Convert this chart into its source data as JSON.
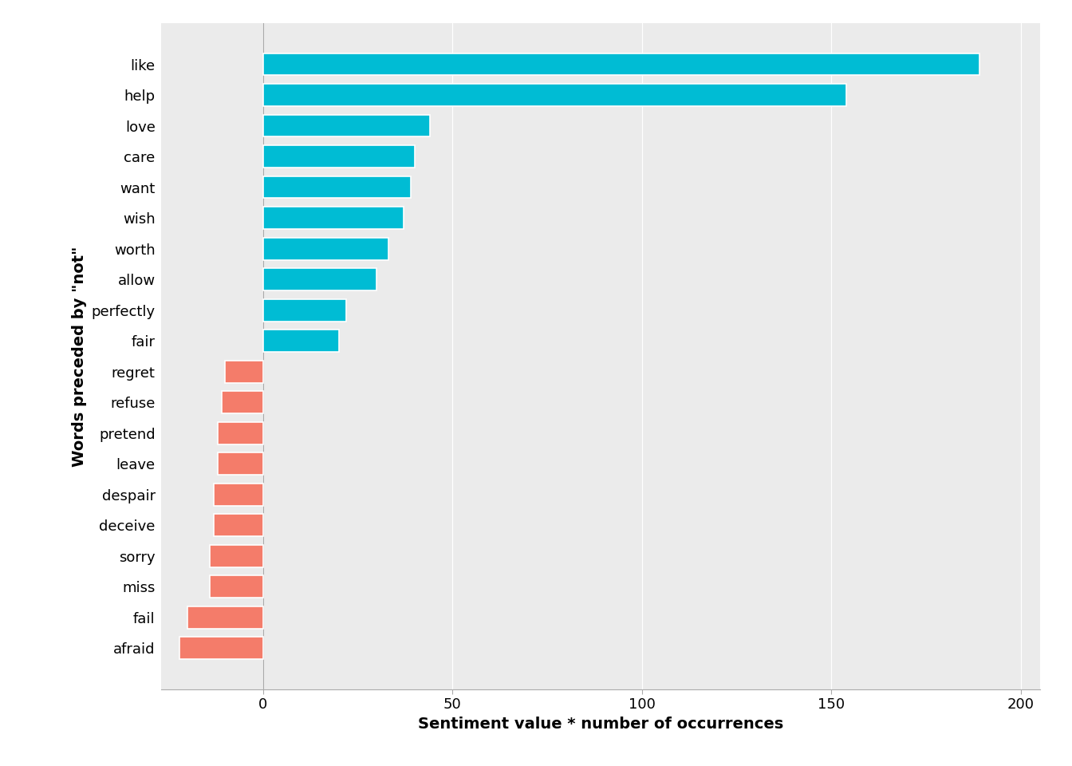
{
  "categories": [
    "like",
    "help",
    "love",
    "care",
    "want",
    "wish",
    "worth",
    "allow",
    "perfectly",
    "fair",
    "regret",
    "refuse",
    "pretend",
    "leave",
    "despair",
    "deceive",
    "sorry",
    "miss",
    "fail",
    "afraid"
  ],
  "values": [
    189,
    154,
    44,
    40,
    39,
    37,
    33,
    30,
    22,
    20,
    -10,
    -11,
    -12,
    -12,
    -13,
    -13,
    -14,
    -14,
    -20,
    -22
  ],
  "positive_color": "#00BCD4",
  "negative_color": "#F47C6A",
  "plot_bg_color": "#EBEBEB",
  "fig_bg_color": "#FFFFFF",
  "grid_color": "#FFFFFF",
  "xlabel": "Sentiment value * number of occurrences",
  "ylabel": "Words preceded by \"not\"",
  "xlim": [
    -27,
    205
  ],
  "xticks": [
    0,
    50,
    100,
    150,
    200
  ],
  "label_fontsize": 14,
  "tick_fontsize": 13,
  "bar_height": 0.72
}
